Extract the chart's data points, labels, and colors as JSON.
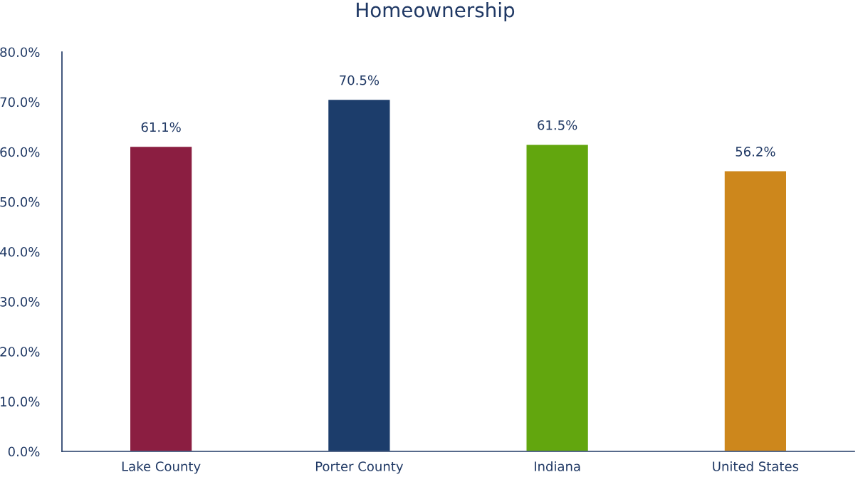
{
  "chart_data": {
    "type": "bar",
    "title": "Homeownership",
    "categories": [
      "Lake County",
      "Porter County",
      "Indiana",
      "United States"
    ],
    "values": [
      61.1,
      70.5,
      61.5,
      56.2
    ],
    "colors": [
      "#8b1e41",
      "#1c3d6b",
      "#62a60e",
      "#cd871c"
    ],
    "value_labels": [
      "61.1%",
      "70.5%",
      "61.5%",
      "56.2%"
    ],
    "ylim": [
      0,
      80
    ],
    "yticks": [
      {
        "value": 0,
        "label": "0.0%"
      },
      {
        "value": 10,
        "label": "10.0%"
      },
      {
        "value": 20,
        "label": "20.0%"
      },
      {
        "value": 30,
        "label": "30.0%"
      },
      {
        "value": 40,
        "label": "40.0%"
      },
      {
        "value": 50,
        "label": "50.0%"
      },
      {
        "value": 60,
        "label": "60.0%"
      },
      {
        "value": 70,
        "label": "70.0%"
      },
      {
        "value": 80,
        "label": "80.0%"
      }
    ],
    "grid": false,
    "legend": false
  }
}
